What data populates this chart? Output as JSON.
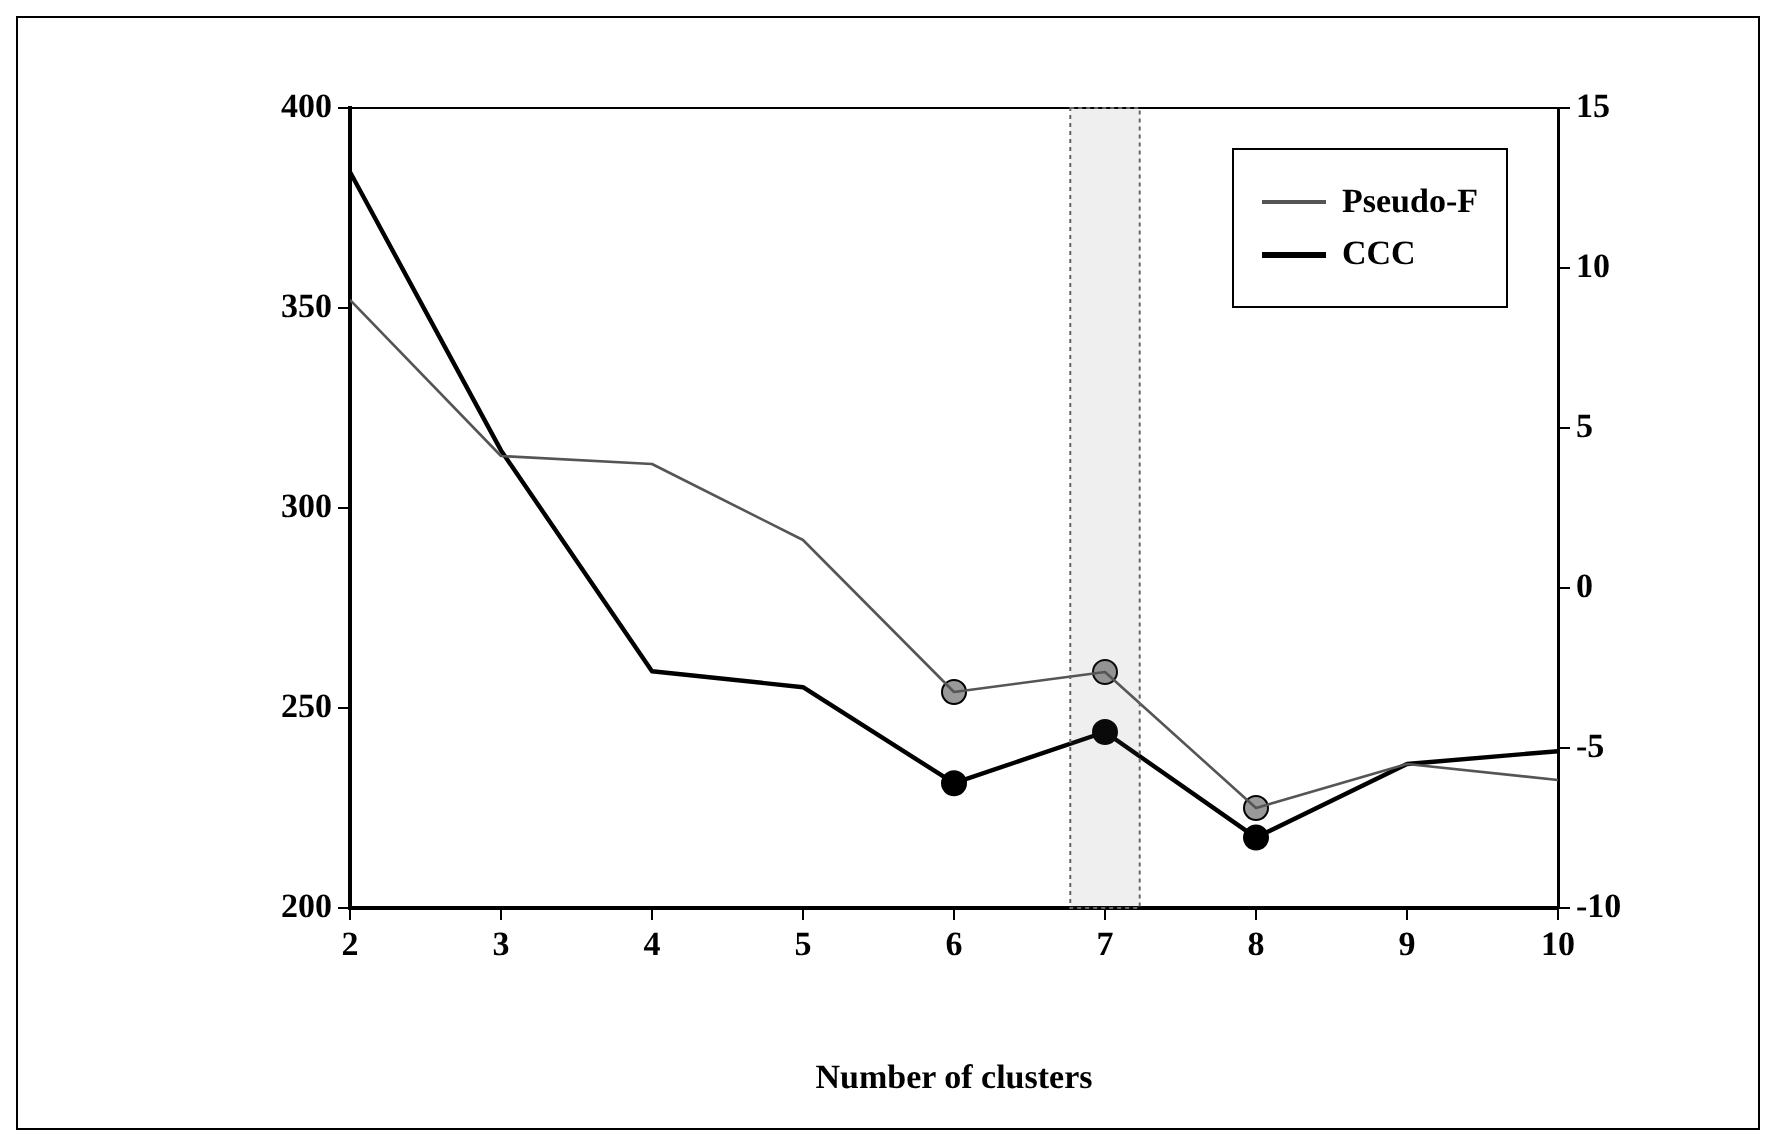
{
  "chart_data": {
    "type": "line",
    "xlabel": "Number of clusters",
    "x": [
      2,
      3,
      4,
      5,
      6,
      7,
      8,
      9,
      10
    ],
    "series": [
      {
        "name": "Pseudo-F",
        "color": "#555555",
        "values": [
          352,
          313,
          311,
          292,
          254,
          259,
          225,
          236,
          232
        ]
      },
      {
        "name": "CCC",
        "color": "#000000",
        "axis": "y2",
        "values": [
          13.0,
          4.3,
          -2.6,
          -3.1,
          -6.1,
          -4.5,
          -7.8,
          -5.5,
          -5.1
        ]
      },
      {
        "type": "scatter",
        "color": "#999999",
        "marker": "circle",
        "x": [
          6,
          7,
          8
        ],
        "values": [
          254,
          259,
          225
        ]
      },
      {
        "type": "scatter",
        "color": "#000000",
        "marker": "circle",
        "axis": "y2",
        "x": [
          6,
          7,
          8
        ],
        "values": [
          -6.1,
          -4.5,
          -7.8
        ]
      }
    ],
    "xlim": [
      2,
      10
    ],
    "xticks": [
      2,
      3,
      4,
      5,
      6,
      7,
      8,
      9,
      10
    ],
    "ylim": [
      200,
      400
    ],
    "yticks": [
      200,
      250,
      300,
      350,
      400
    ],
    "y2lim": [
      -10,
      15
    ],
    "y2ticks": [
      -10,
      -5,
      0,
      5,
      10,
      15
    ],
    "bands": [
      {
        "axis": "x",
        "from": 6.77,
        "to": 7.23,
        "color": "#666666"
      }
    ],
    "legend": "top right"
  }
}
